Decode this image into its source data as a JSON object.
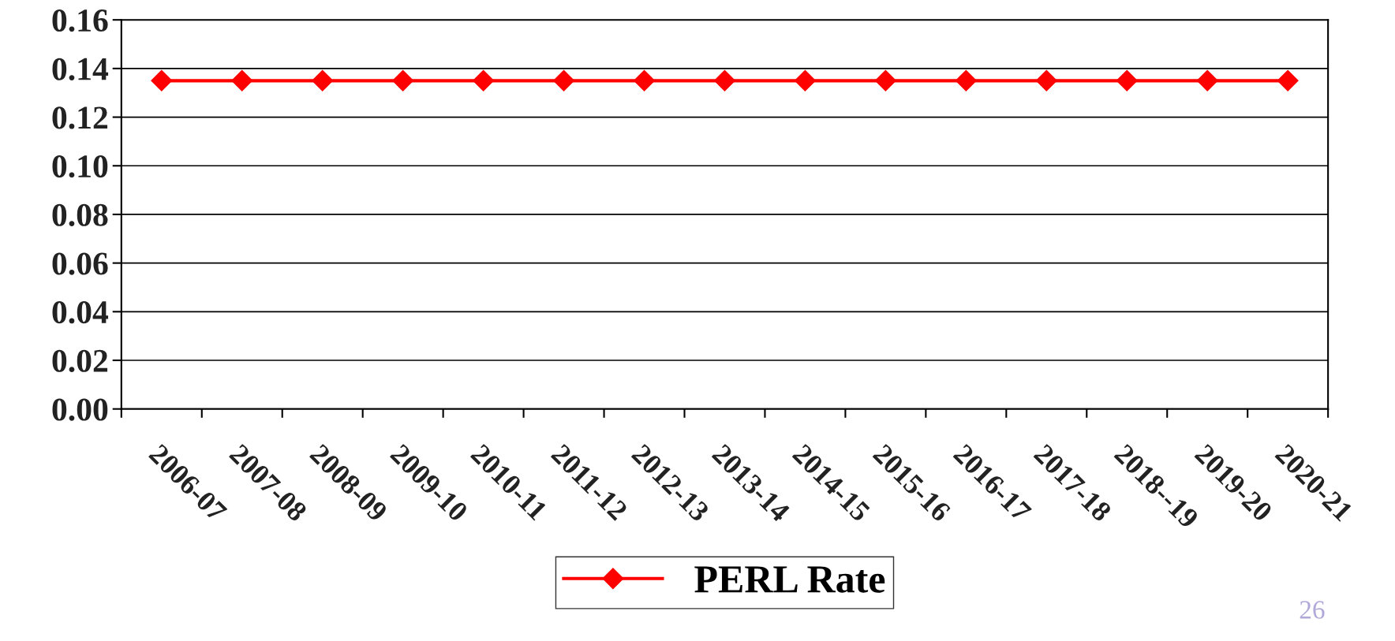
{
  "chart_data": {
    "type": "line",
    "categories": [
      "2006-07",
      "2007-08",
      "2008-09",
      "2009-10",
      "2010-11",
      "2011-12",
      "2012-13",
      "2013-14",
      "2014-15",
      "2015-16",
      "2016-17",
      "2017-18",
      "2018--19",
      "2019-20",
      "2020-21"
    ],
    "series": [
      {
        "name": "PERL Rate",
        "color": "#ff0000",
        "values": [
          0.135,
          0.135,
          0.135,
          0.135,
          0.135,
          0.135,
          0.135,
          0.135,
          0.135,
          0.135,
          0.135,
          0.135,
          0.135,
          0.135,
          0.135
        ]
      }
    ],
    "ylim": [
      0,
      0.16
    ],
    "yticks": [
      {
        "value": 0,
        "label": "0.00"
      },
      {
        "value": 0.02,
        "label": "0.02"
      },
      {
        "value": 0.04,
        "label": "0.04"
      },
      {
        "value": 0.06,
        "label": "0.06"
      },
      {
        "value": 0.08,
        "label": "0.08"
      },
      {
        "value": 0.1,
        "label": "0.10"
      },
      {
        "value": 0.12,
        "label": "0.12"
      },
      {
        "value": 0.14,
        "label": "0.14"
      },
      {
        "value": 0.16,
        "label": "0.16"
      }
    ],
    "grid": "y",
    "legend": "bottom",
    "marker": "diamond",
    "line_style": "solid",
    "annotations": [
      "26"
    ]
  }
}
